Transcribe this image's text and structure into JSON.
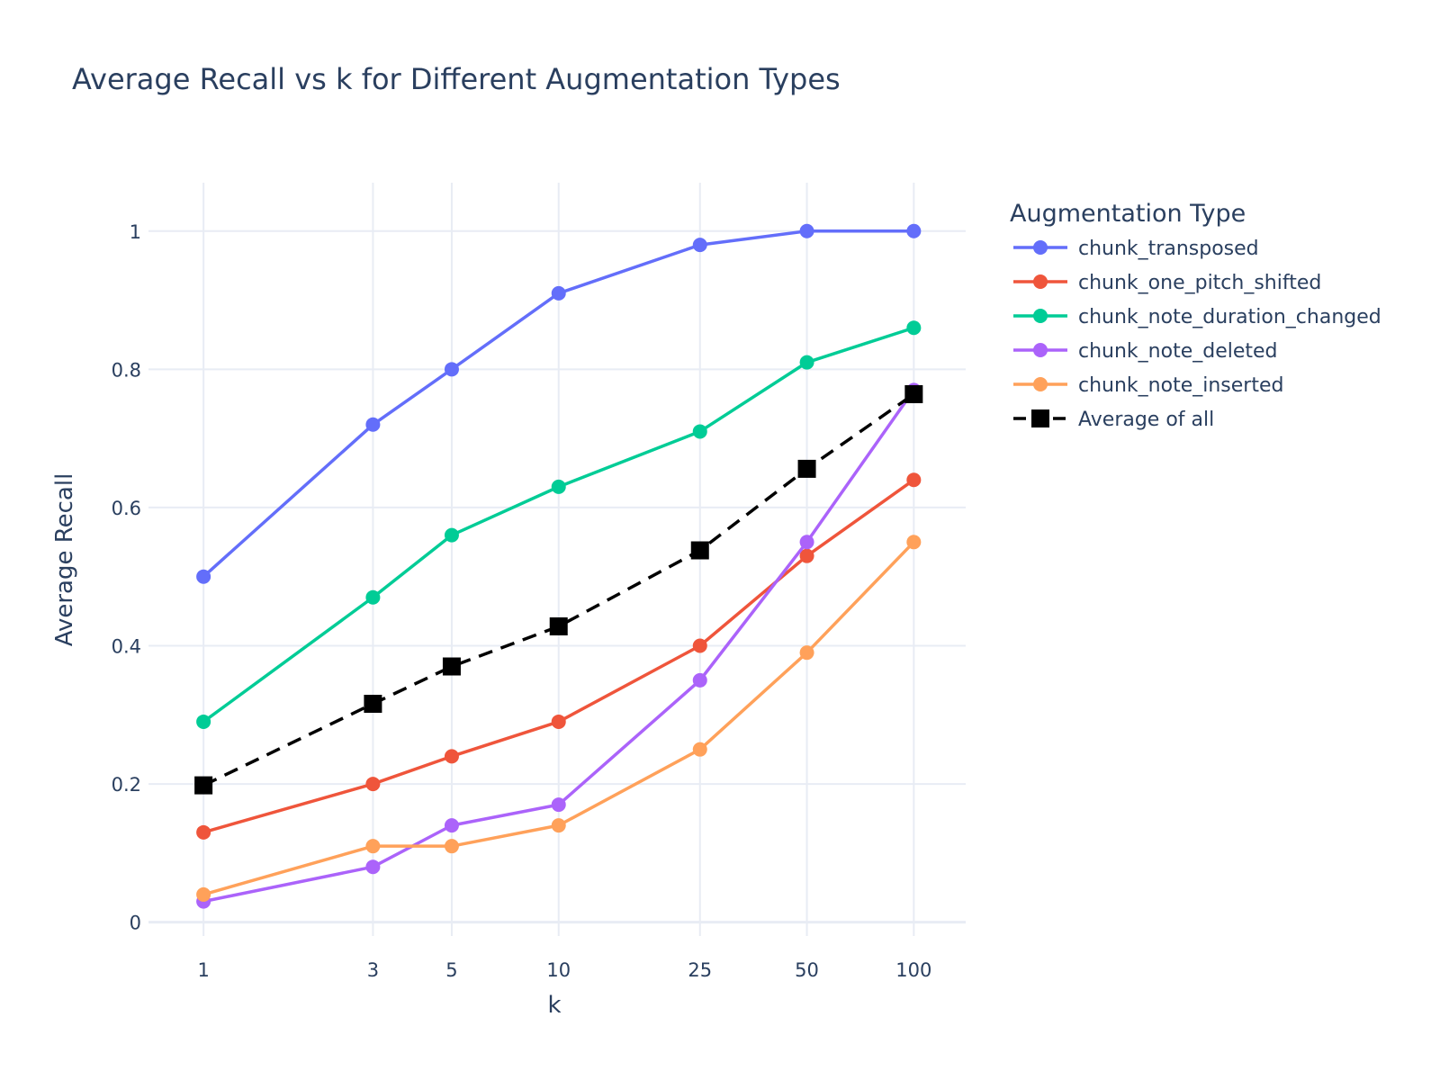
{
  "chart_data": {
    "type": "line",
    "title": "Average Recall vs k for Different Augmentation Types",
    "xlabel": "k",
    "ylabel": "Average Recall",
    "x_scale": "log",
    "x": [
      1,
      3,
      5,
      10,
      25,
      50,
      100
    ],
    "x_tick_labels": [
      "1",
      "3",
      "5",
      "10",
      "25",
      "50",
      "100"
    ],
    "y_ticks": [
      0,
      0.2,
      0.4,
      0.6,
      0.8,
      1
    ],
    "y_tick_labels": [
      "0",
      "0.2",
      "0.4",
      "0.6",
      "0.8",
      "1"
    ],
    "ylim": [
      -0.02,
      1.07
    ],
    "xlim": [
      0.7,
      140
    ],
    "grid": true,
    "legend_title": "Augmentation Type",
    "legend_position": "right",
    "series": [
      {
        "name": "chunk_transposed",
        "color": "#636efa",
        "marker": "circle",
        "dash": "solid",
        "values": [
          0.5,
          0.72,
          0.8,
          0.91,
          0.98,
          1.0,
          1.0
        ]
      },
      {
        "name": "chunk_one_pitch_shifted",
        "color": "#ef553b",
        "marker": "circle",
        "dash": "solid",
        "values": [
          0.13,
          0.2,
          0.24,
          0.29,
          0.4,
          0.53,
          0.64
        ]
      },
      {
        "name": "chunk_note_duration_changed",
        "color": "#00cc96",
        "marker": "circle",
        "dash": "solid",
        "values": [
          0.29,
          0.47,
          0.56,
          0.63,
          0.71,
          0.81,
          0.86
        ]
      },
      {
        "name": "chunk_note_deleted",
        "color": "#ab63fa",
        "marker": "circle",
        "dash": "solid",
        "values": [
          0.03,
          0.08,
          0.14,
          0.17,
          0.35,
          0.55,
          0.77
        ]
      },
      {
        "name": "chunk_note_inserted",
        "color": "#ffa15a",
        "marker": "circle",
        "dash": "solid",
        "values": [
          0.04,
          0.11,
          0.11,
          0.14,
          0.25,
          0.39,
          0.55
        ]
      },
      {
        "name": "Average of all",
        "color": "#000000",
        "marker": "square",
        "dash": "dash",
        "values": [
          0.198,
          0.316,
          0.37,
          0.428,
          0.538,
          0.656,
          0.764
        ]
      }
    ]
  }
}
